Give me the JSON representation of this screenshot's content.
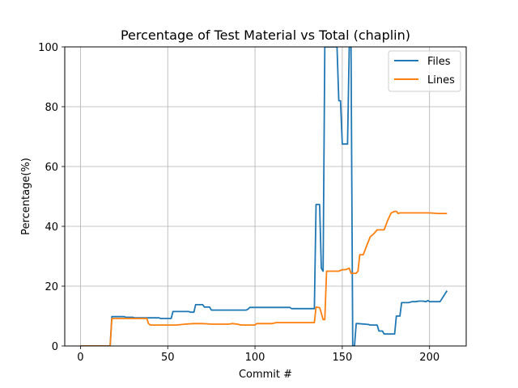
{
  "chart_data": {
    "type": "line",
    "title": "Percentage of Test Material vs Total (chaplin)",
    "xlabel": "Commit #",
    "ylabel": "Percentage(%)",
    "xlim": [
      -9,
      221
    ],
    "ylim": [
      0,
      100
    ],
    "xticks": [
      0,
      50,
      100,
      150,
      200
    ],
    "yticks": [
      0,
      20,
      40,
      60,
      80,
      100
    ],
    "grid": true,
    "legend_position": "top-right",
    "series": [
      {
        "name": "Files",
        "color": "#1f77b4",
        "x": [
          0,
          17,
          18,
          25,
          26,
          30,
          31,
          38,
          39,
          45,
          46,
          52,
          53,
          62,
          63,
          65,
          66,
          70,
          71,
          74,
          75,
          95,
          96,
          97,
          98,
          112,
          113,
          120,
          121,
          134,
          135,
          137,
          138,
          139,
          140,
          141,
          146,
          147,
          148,
          149,
          150,
          151,
          152,
          153,
          154,
          155,
          156,
          157,
          158,
          159,
          165,
          166,
          170,
          171,
          173,
          174,
          180,
          181,
          183,
          184,
          186,
          188,
          190,
          192,
          194,
          196,
          198,
          199,
          200,
          201,
          206,
          210
        ],
        "y": [
          0,
          0,
          9.8,
          9.8,
          9.6,
          9.6,
          9.4,
          9.4,
          9.4,
          9.4,
          9.2,
          9.2,
          11.5,
          11.5,
          11.3,
          11.3,
          13.8,
          13.8,
          13.0,
          13.0,
          12.0,
          12.0,
          12.3,
          12.9,
          12.9,
          12.9,
          12.9,
          12.9,
          12.5,
          12.5,
          47.3,
          47.3,
          26.0,
          25.0,
          100,
          100,
          100,
          100,
          82.0,
          82.0,
          67.5,
          67.5,
          67.5,
          67.5,
          100,
          100,
          0,
          0,
          7.5,
          7.5,
          7.2,
          7.0,
          7.0,
          5.0,
          5.0,
          4.0,
          4.0,
          10.0,
          10.0,
          14.5,
          14.5,
          14.5,
          14.8,
          14.8,
          15.0,
          15.0,
          14.8,
          15.2,
          14.8,
          14.8,
          14.8,
          18.5
        ]
      },
      {
        "name": "Lines",
        "color": "#ff7f0e",
        "x": [
          0,
          17,
          18,
          30,
          38,
          39,
          40,
          45,
          50,
          55,
          60,
          65,
          70,
          75,
          80,
          85,
          87,
          90,
          92,
          95,
          100,
          101,
          105,
          110,
          112,
          120,
          125,
          130,
          133,
          134,
          135,
          137,
          138,
          139,
          140,
          141,
          146,
          148,
          150,
          152,
          154,
          155,
          156,
          158,
          159,
          160,
          162,
          165,
          166,
          168,
          170,
          172,
          173,
          174,
          176,
          178,
          180,
          181,
          182,
          183,
          185,
          190,
          195,
          200,
          205,
          210
        ],
        "y": [
          0,
          0,
          9.2,
          9.2,
          9.2,
          7.5,
          7.0,
          7.0,
          7.0,
          7.0,
          7.3,
          7.5,
          7.5,
          7.3,
          7.3,
          7.3,
          7.5,
          7.3,
          7.0,
          7.0,
          7.0,
          7.5,
          7.5,
          7.5,
          7.8,
          7.8,
          7.8,
          7.8,
          7.8,
          7.8,
          13.0,
          12.8,
          11.0,
          8.8,
          8.8,
          25.0,
          25.0,
          25.0,
          25.5,
          25.5,
          26.0,
          24.3,
          24.3,
          24.3,
          25.0,
          30.5,
          30.5,
          35.0,
          36.5,
          37.5,
          38.8,
          38.8,
          38.8,
          38.8,
          42.0,
          44.5,
          45.0,
          45.0,
          44.3,
          44.5,
          44.5,
          44.5,
          44.5,
          44.5,
          44.3,
          44.3
        ]
      }
    ]
  }
}
